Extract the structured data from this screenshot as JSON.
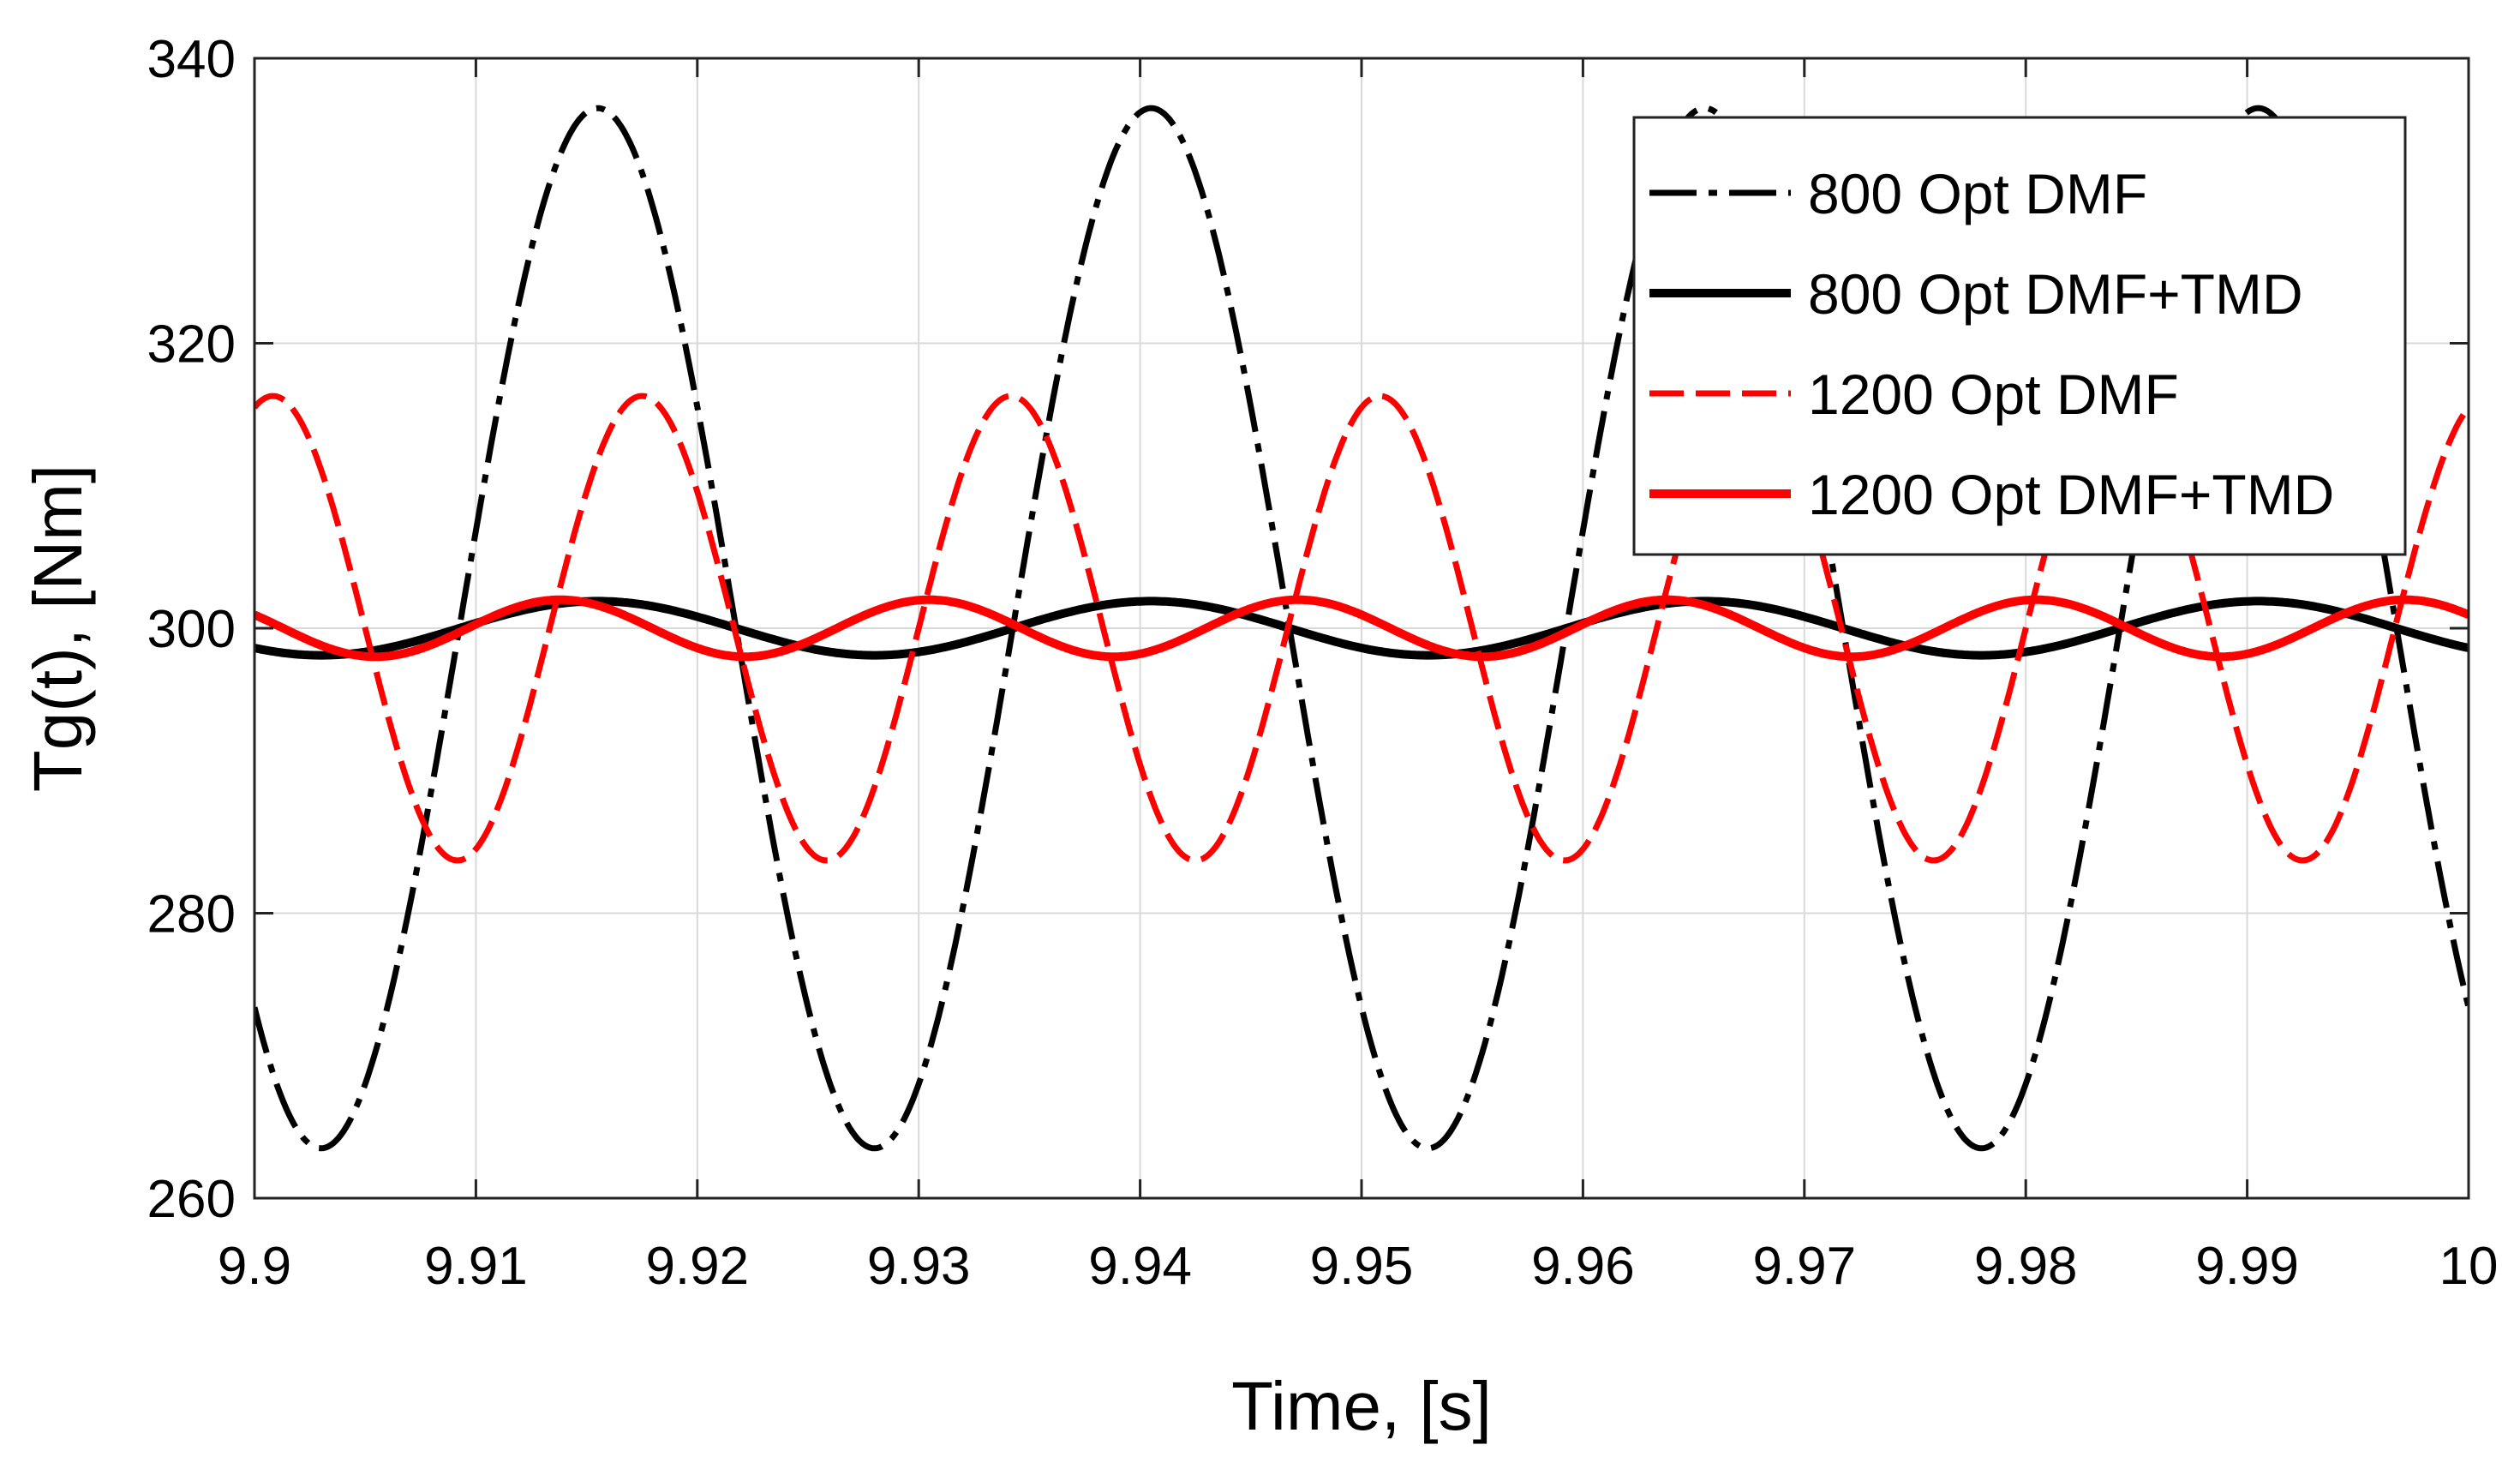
{
  "chart_data": {
    "type": "line",
    "xlabel": "Time, [s]",
    "ylabel": "Tg(t), [Nm]",
    "xlim": [
      9.9,
      10.0
    ],
    "ylim": [
      260,
      340
    ],
    "grid": true,
    "xticks": [
      9.9,
      9.91,
      9.92,
      9.93,
      9.94,
      9.95,
      9.96,
      9.97,
      9.98,
      9.99,
      10.0
    ],
    "xtick_labels": [
      "9.9",
      "9.91",
      "9.92",
      "9.93",
      "9.94",
      "9.95",
      "9.96",
      "9.97",
      "9.98",
      "9.99",
      "10"
    ],
    "yticks": [
      260,
      280,
      300,
      320,
      340
    ],
    "ytick_labels": [
      "260",
      "280",
      "300",
      "320",
      "340"
    ],
    "legend_position": "top-right",
    "series": [
      {
        "name": "800 Opt DMF",
        "color": "#000000",
        "style": "dashdot",
        "mean": 300,
        "amplitude": 36.5,
        "period": 0.025,
        "peak_time": 9.9155
      },
      {
        "name": "800 Opt DMF+TMD",
        "color": "#000000",
        "style": "solid",
        "mean": 300,
        "amplitude": 1.9,
        "period": 0.025,
        "peak_time": 9.9155
      },
      {
        "name": "1200 Opt DMF",
        "color": "#ff0000",
        "style": "dashed",
        "mean": 300,
        "amplitude": 16.3,
        "period": 0.016667,
        "peak_time": 9.9175
      },
      {
        "name": "1200 Opt DMF+TMD",
        "color": "#ff0000",
        "style": "solid",
        "mean": 300,
        "amplitude": 2.0,
        "period": 0.016667,
        "peak_time": 9.9138
      }
    ]
  }
}
